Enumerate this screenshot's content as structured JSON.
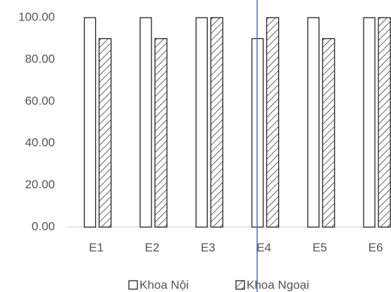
{
  "chart_data": {
    "type": "bar",
    "categories": [
      "E1",
      "E2",
      "E3",
      "E4",
      "E5",
      "E6"
    ],
    "series": [
      {
        "name": "Khoa Nội",
        "color": "#ffffff",
        "hatch": false,
        "values": [
          100,
          100,
          100,
          90,
          100,
          100
        ]
      },
      {
        "name": "Khoa Ngoại",
        "color": "#ffffff",
        "hatch": true,
        "values": [
          90,
          90,
          100,
          100,
          90,
          100
        ]
      }
    ],
    "ylim": [
      0,
      100
    ],
    "yticks": [
      {
        "value": 0,
        "label": "0.00"
      },
      {
        "value": 20,
        "label": "20.00"
      },
      {
        "value": 40,
        "label": "40.00"
      },
      {
        "value": 60,
        "label": "60.00"
      },
      {
        "value": 80,
        "label": "80.00"
      },
      {
        "value": 100,
        "label": "100.00"
      }
    ],
    "grid": false,
    "legend": "bottom"
  }
}
